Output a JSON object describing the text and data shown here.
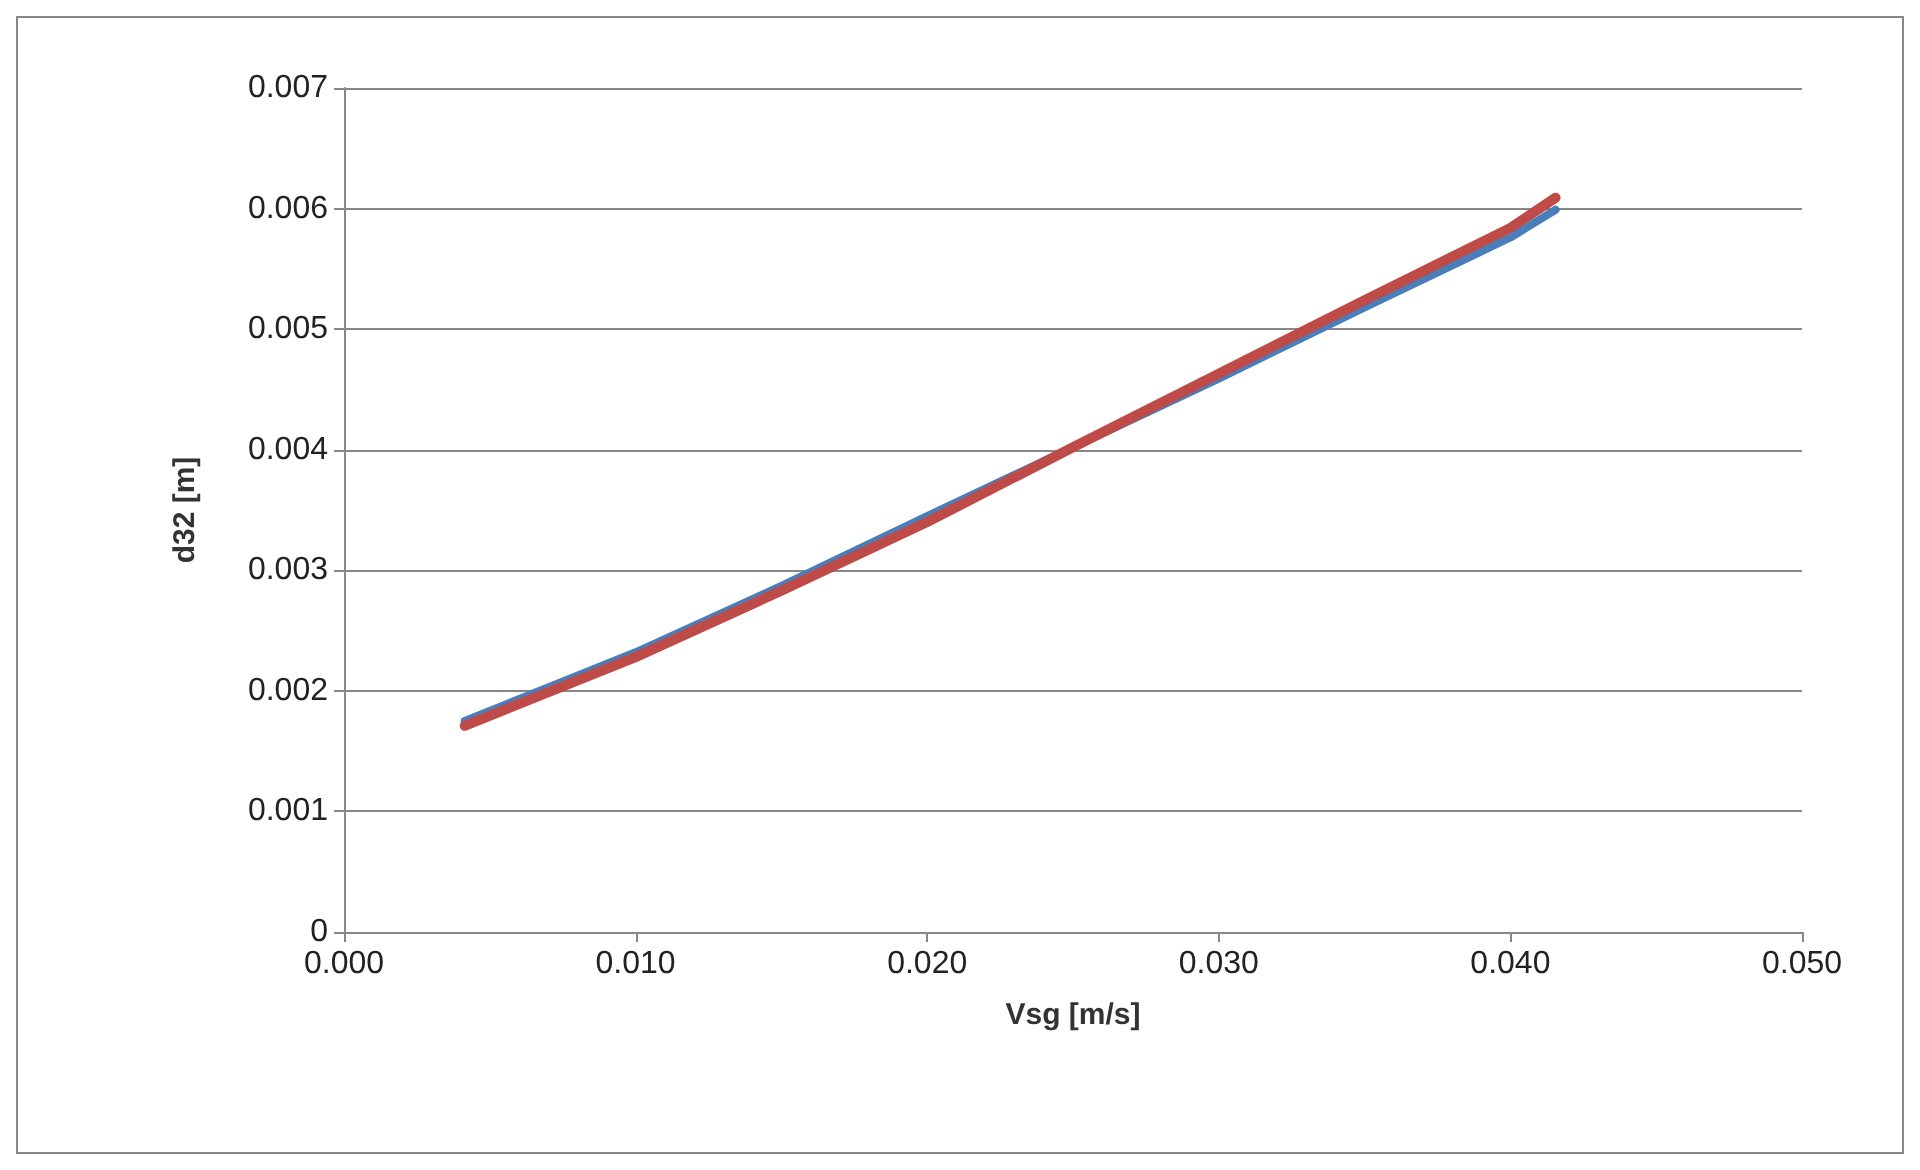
{
  "chart_data": {
    "type": "line",
    "xlabel": "Vsg [m/s]",
    "ylabel": "d32 [m]",
    "xlim": [
      0,
      0.05
    ],
    "xticks": [
      {
        "value": 0,
        "label": "0.000"
      },
      {
        "value": 0.01,
        "label": "0.010"
      },
      {
        "value": 0.02,
        "label": "0.020"
      },
      {
        "value": 0.03,
        "label": "0.030"
      },
      {
        "value": 0.04,
        "label": "0.040"
      },
      {
        "value": 0.05,
        "label": "0.050"
      }
    ],
    "ylim": [
      0,
      0.007
    ],
    "yticks": [
      0,
      0.001,
      0.002,
      0.003,
      0.004,
      0.005,
      0.006,
      0.007
    ],
    "grid": "y",
    "marker": "none",
    "line_style": "solid",
    "series": [
      {
        "color": "#4a7ebb",
        "x": [
          0.00414,
          0.01,
          0.015,
          0.02,
          0.025,
          0.03,
          0.035,
          0.04,
          0.04155
        ],
        "values": [
          0.00175,
          0.00232,
          0.00287,
          0.00345,
          0.00402,
          0.00459,
          0.00518,
          0.00576,
          0.00599
        ]
      },
      {
        "color": "#be4b48",
        "x": [
          0.00414,
          0.01,
          0.015,
          0.02,
          0.025,
          0.03,
          0.035,
          0.04,
          0.04155
        ],
        "values": [
          0.00171,
          0.00228,
          0.00283,
          0.0034,
          0.00402,
          0.00463,
          0.00524,
          0.00584,
          0.00609
        ]
      }
    ]
  }
}
